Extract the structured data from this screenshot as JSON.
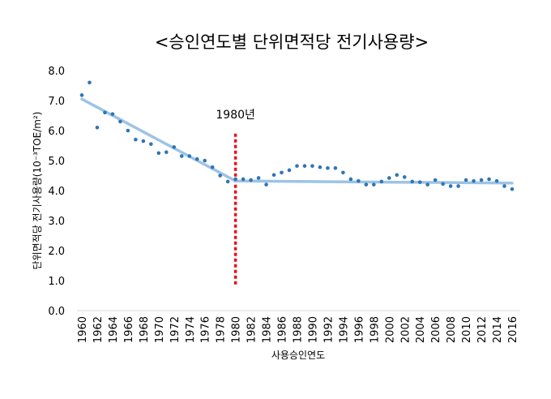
{
  "chart_data": {
    "type": "scatter",
    "title": "<승인연도별 단위면적당 전기사용량>",
    "xlabel": "사용승인연도",
    "ylabel": "단위면적당 전기사용량(10⁻³TOE/m²)",
    "xlim": [
      1960,
      2016
    ],
    "ylim": [
      0,
      8
    ],
    "y_tick_labels": [
      "0.0",
      "1.0",
      "2.0",
      "3.0",
      "4.0",
      "5.0",
      "6.0",
      "7.0",
      "8.0"
    ],
    "x_tick_labels": [
      "1960",
      "1962",
      "1964",
      "1966",
      "1968",
      "1970",
      "1972",
      "1974",
      "1976",
      "1978",
      "1980",
      "1982",
      "1984",
      "1986",
      "1988",
      "1990",
      "1992",
      "1994",
      "1996",
      "1998",
      "2000",
      "2002",
      "2004",
      "2006",
      "2008",
      "2010",
      "2012",
      "2014",
      "2016"
    ],
    "grid": false,
    "series": [
      {
        "kind": "points",
        "color": "#2e75b6",
        "x": [
          1960,
          1961,
          1962,
          1963,
          1964,
          1965,
          1966,
          1967,
          1968,
          1969,
          1970,
          1971,
          1972,
          1973,
          1974,
          1975,
          1976,
          1977,
          1978,
          1979,
          1980,
          1981,
          1982,
          1983,
          1984,
          1985,
          1986,
          1987,
          1988,
          1989,
          1990,
          1991,
          1992,
          1993,
          1994,
          1995,
          1996,
          1997,
          1998,
          1999,
          2000,
          2001,
          2002,
          2003,
          2004,
          2005,
          2006,
          2007,
          2008,
          2009,
          2010,
          2011,
          2012,
          2013,
          2014,
          2015,
          2016
        ],
        "y": [
          7.18,
          7.6,
          6.1,
          6.6,
          6.55,
          6.3,
          6.0,
          5.7,
          5.65,
          5.55,
          5.25,
          5.28,
          5.45,
          5.15,
          5.15,
          5.05,
          5.0,
          4.78,
          4.5,
          4.3,
          4.38,
          4.38,
          4.35,
          4.42,
          4.2,
          4.52,
          4.6,
          4.68,
          4.82,
          4.82,
          4.82,
          4.78,
          4.75,
          4.75,
          4.6,
          4.38,
          4.32,
          4.2,
          4.2,
          4.3,
          4.42,
          4.52,
          4.45,
          4.3,
          4.28,
          4.2,
          4.35,
          4.22,
          4.15,
          4.15,
          4.35,
          4.32,
          4.35,
          4.38,
          4.32,
          4.15,
          4.05
        ]
      },
      {
        "kind": "trend",
        "color": "#9dc3e6",
        "x": [
          1960,
          1980,
          2016
        ],
        "y": [
          7.05,
          4.32,
          4.25
        ]
      }
    ],
    "annotations": [
      {
        "text": "1980년",
        "x": 1980,
        "line_color": "#e8121e",
        "line_y": [
          0.8,
          5.9
        ]
      }
    ]
  }
}
